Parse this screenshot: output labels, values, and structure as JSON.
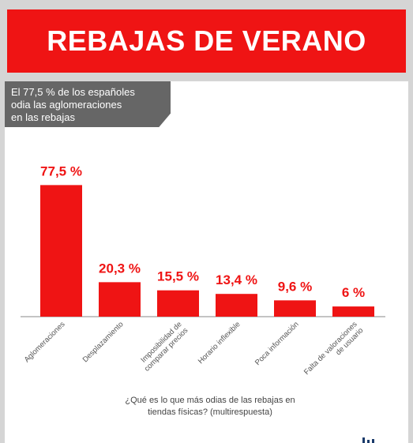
{
  "header": {
    "title": "REBAJAS DE VERANO"
  },
  "callout": {
    "text": "El 77,5 % de los españoles\nodia las aglomeraciones\nen las rebajas"
  },
  "colors": {
    "bar": "#ef1414",
    "banner": "#ef1414",
    "callout": "#666666",
    "axis": "#888888"
  },
  "chart_data": {
    "type": "bar",
    "categories": [
      "Aglomeraciones",
      "Desplazamiento",
      "Imposibilidad de\ncomparar precios",
      "Horario inflexible",
      "Poca información",
      "Falta de valoraciones\nde usuario"
    ],
    "values": [
      77.5,
      20.3,
      15.5,
      13.4,
      9.6,
      6
    ],
    "data_labels": [
      "77,5 %",
      "20,3 %",
      "15,5 %",
      "13,4 %",
      "9,6 %",
      "6 %"
    ],
    "xlabel": "¿Qué es lo que más odias de las rebajas en\ntiendas físicas? (multirespuesta)",
    "ylabel": "",
    "ylim": [
      0,
      80
    ],
    "grid": false,
    "legend": "none"
  }
}
